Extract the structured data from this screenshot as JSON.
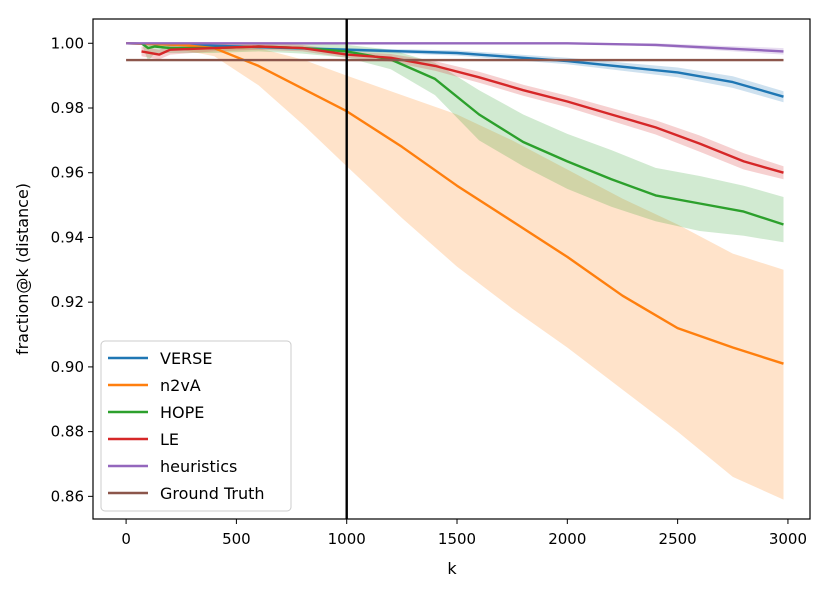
{
  "chart_data": {
    "type": "line",
    "xlabel": "k",
    "ylabel": "fraction@k (distance)",
    "xlim": [
      -150,
      3100
    ],
    "ylim": [
      0.853,
      1.0075
    ],
    "xticks": [
      0,
      500,
      1000,
      1500,
      2000,
      2500,
      3000
    ],
    "yticks": [
      0.86,
      0.88,
      0.9,
      0.92,
      0.94,
      0.96,
      0.98,
      1.0
    ],
    "xtick_labels": [
      "0",
      "500",
      "1000",
      "1500",
      "2000",
      "2500",
      "3000"
    ],
    "ytick_labels": [
      "0.86",
      "0.88",
      "0.90",
      "0.92",
      "0.94",
      "0.96",
      "0.98",
      "1.00"
    ],
    "grid": false,
    "legend_position": "lower-left",
    "vertical_line_x": 1000,
    "series": [
      {
        "name": "VERSE",
        "color": "#1f77b4",
        "x": [
          0,
          500,
          1000,
          1500,
          2000,
          2500,
          2750,
          2980
        ],
        "y": [
          1.0,
          0.999,
          0.998,
          0.997,
          0.9945,
          0.991,
          0.988,
          0.9835
        ],
        "lower": [
          1.0,
          0.999,
          0.9975,
          0.9962,
          0.9935,
          0.9895,
          0.9862,
          0.9818
        ],
        "upper": [
          1.0,
          0.9995,
          0.9985,
          0.9978,
          0.9955,
          0.9925,
          0.9898,
          0.9852
        ]
      },
      {
        "name": "n2vA",
        "color": "#ff7f0e",
        "x": [
          0,
          250,
          400,
          600,
          800,
          1000,
          1250,
          1500,
          1750,
          2000,
          2250,
          2500,
          2750,
          2980
        ],
        "y": [
          1.0,
          0.9995,
          0.9985,
          0.993,
          0.986,
          0.979,
          0.968,
          0.956,
          0.945,
          0.934,
          0.922,
          0.912,
          0.906,
          0.901
        ],
        "lower": [
          1.0,
          0.998,
          0.996,
          0.987,
          0.975,
          0.962,
          0.946,
          0.931,
          0.918,
          0.906,
          0.893,
          0.88,
          0.866,
          0.859
        ],
        "upper": [
          1.0,
          1.0,
          1.0,
          0.9985,
          0.995,
          0.99,
          0.984,
          0.978,
          0.97,
          0.961,
          0.952,
          0.944,
          0.935,
          0.93
        ]
      },
      {
        "name": "HOPE",
        "color": "#2ca02c",
        "x": [
          70,
          100,
          130,
          200,
          400,
          600,
          800,
          1000,
          1200,
          1400,
          1600,
          1800,
          2000,
          2200,
          2400,
          2600,
          2800,
          2980
        ],
        "y": [
          1.0,
          0.9985,
          0.999,
          0.9985,
          0.9985,
          0.999,
          0.9985,
          0.9975,
          0.995,
          0.989,
          0.978,
          0.9695,
          0.9635,
          0.958,
          0.953,
          0.9505,
          0.948,
          0.944
        ],
        "lower": [
          1.0,
          0.9945,
          0.997,
          0.997,
          0.997,
          0.9975,
          0.9968,
          0.9955,
          0.992,
          0.984,
          0.97,
          0.962,
          0.955,
          0.9495,
          0.945,
          0.942,
          0.9405,
          0.9385
        ],
        "upper": [
          1.0,
          1.0,
          1.0,
          1.0,
          1.0,
          1.0,
          1.0,
          0.9995,
          0.998,
          0.994,
          0.9855,
          0.978,
          0.972,
          0.967,
          0.9615,
          0.959,
          0.956,
          0.9525
        ]
      },
      {
        "name": "LE",
        "color": "#d62728",
        "x": [
          70,
          150,
          200,
          400,
          600,
          800,
          1000,
          1200,
          1400,
          1600,
          1800,
          2000,
          2200,
          2400,
          2600,
          2800,
          2980
        ],
        "y": [
          0.9975,
          0.9965,
          0.998,
          0.9985,
          0.999,
          0.9985,
          0.9965,
          0.9955,
          0.993,
          0.9895,
          0.9855,
          0.982,
          0.978,
          0.974,
          0.969,
          0.9635,
          0.96
        ],
        "lower": [
          0.996,
          0.995,
          0.9965,
          0.9975,
          0.998,
          0.9975,
          0.9955,
          0.9943,
          0.9915,
          0.9878,
          0.9838,
          0.9802,
          0.976,
          0.9718,
          0.9665,
          0.961,
          0.958
        ],
        "upper": [
          0.999,
          0.998,
          0.9995,
          0.9995,
          1.0,
          0.9995,
          0.9975,
          0.9967,
          0.9945,
          0.9912,
          0.9872,
          0.9838,
          0.98,
          0.9762,
          0.9715,
          0.966,
          0.962
        ]
      },
      {
        "name": "heuristics",
        "color": "#9467bd",
        "x": [
          0,
          500,
          1000,
          1500,
          2000,
          2400,
          2980
        ],
        "y": [
          1.0,
          1.0,
          1.0,
          1.0,
          1.0,
          0.9995,
          0.9975
        ],
        "lower": [
          1.0,
          1.0,
          1.0,
          1.0,
          1.0,
          0.999,
          0.9965
        ],
        "upper": [
          1.0,
          1.0,
          1.0,
          1.0,
          1.0,
          1.0,
          0.9985
        ]
      },
      {
        "name": "Ground Truth",
        "color": "#8c564b",
        "x": [
          0,
          2980
        ],
        "y": [
          0.9948,
          0.9948
        ],
        "lower": [
          0.9945,
          0.9945
        ],
        "upper": [
          0.9951,
          0.9951
        ]
      }
    ]
  }
}
